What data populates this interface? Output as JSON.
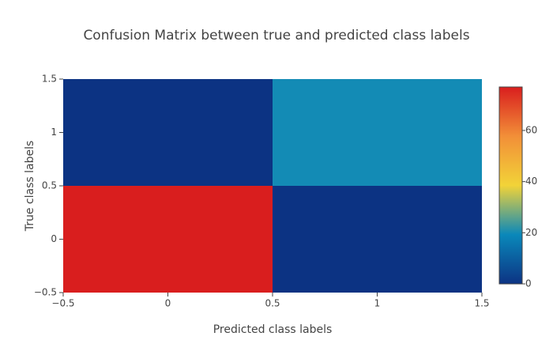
{
  "chart_data": {
    "type": "heatmap",
    "title": "Confusion Matrix between true and predicted class labels",
    "xlabel": "Predicted class labels",
    "ylabel": "True class labels",
    "x": [
      0,
      1
    ],
    "y": [
      0,
      1
    ],
    "z": [
      [
        77,
        0
      ],
      [
        0,
        20
      ]
    ],
    "xlim": [
      -0.5,
      1.5
    ],
    "ylim": [
      -0.5,
      1.5
    ],
    "xticks": [
      {
        "value": -0.5,
        "label": "−0.5"
      },
      0,
      0.5,
      1,
      1.5
    ],
    "yticks": [
      {
        "value": -0.5,
        "label": "−0.5"
      },
      0,
      0.5,
      1,
      1.5
    ],
    "colorscale": [
      [
        0,
        "#0c3383"
      ],
      [
        0.25,
        "#0a88ba"
      ],
      [
        0.5,
        "#f2d338"
      ],
      [
        0.75,
        "#f28f38"
      ],
      [
        1,
        "#d91e1e"
      ]
    ],
    "zlim": [
      0,
      77
    ],
    "colorbar_ticks": [
      0,
      20,
      40,
      60
    ]
  }
}
